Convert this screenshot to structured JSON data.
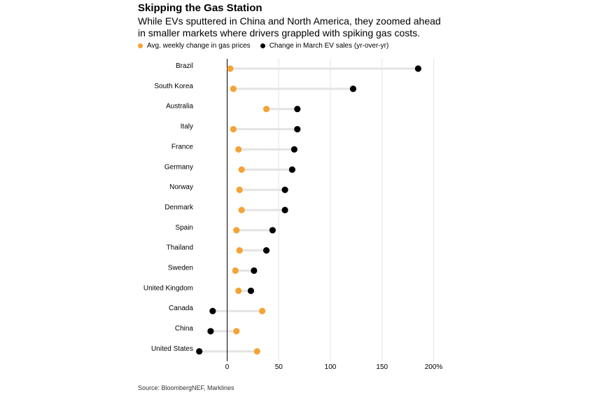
{
  "header": {
    "title": "Skipping the Gas Station",
    "subtitle": "While EVs sputtered in China and North America, they zoomed ahead in smaller markets where drivers grappled with spiking gas costs."
  },
  "legend": {
    "gas_label": "Avg. weekly change in gas prices",
    "ev_label": "Change in March EV sales (yr-over-yr)"
  },
  "colors": {
    "gas": "#f4a335",
    "ev": "#000000",
    "connector": "#e3e3e3",
    "grid": "#e6e6e6",
    "zero_line": "#000000"
  },
  "footer": {
    "source": "Source: BloombergNEF, Marklines"
  },
  "chart_data": {
    "type": "dumbbell",
    "categories": [
      "Brazil",
      "South Korea",
      "Australia",
      "Italy",
      "France",
      "Germany",
      "Norway",
      "Denmark",
      "Spain",
      "Thailand",
      "Sweden",
      "United Kingdom",
      "Canada",
      "China",
      "United States"
    ],
    "series": [
      {
        "name": "Avg. weekly change in gas prices",
        "values": [
          3,
          6,
          38,
          6,
          11,
          14,
          12,
          14,
          9,
          12,
          8,
          11,
          34,
          9,
          29
        ]
      },
      {
        "name": "Change in March EV sales (yr-over-yr)",
        "values": [
          185,
          122,
          68,
          68,
          65,
          63,
          56,
          56,
          44,
          38,
          26,
          23,
          -14,
          -16,
          -27
        ]
      }
    ],
    "x_ticks": [
      "0",
      "50",
      "100",
      "150",
      "200%"
    ],
    "x_tick_values": [
      0,
      50,
      100,
      150,
      200
    ],
    "xlim": [
      -30,
      200
    ],
    "grid": "vertical"
  }
}
